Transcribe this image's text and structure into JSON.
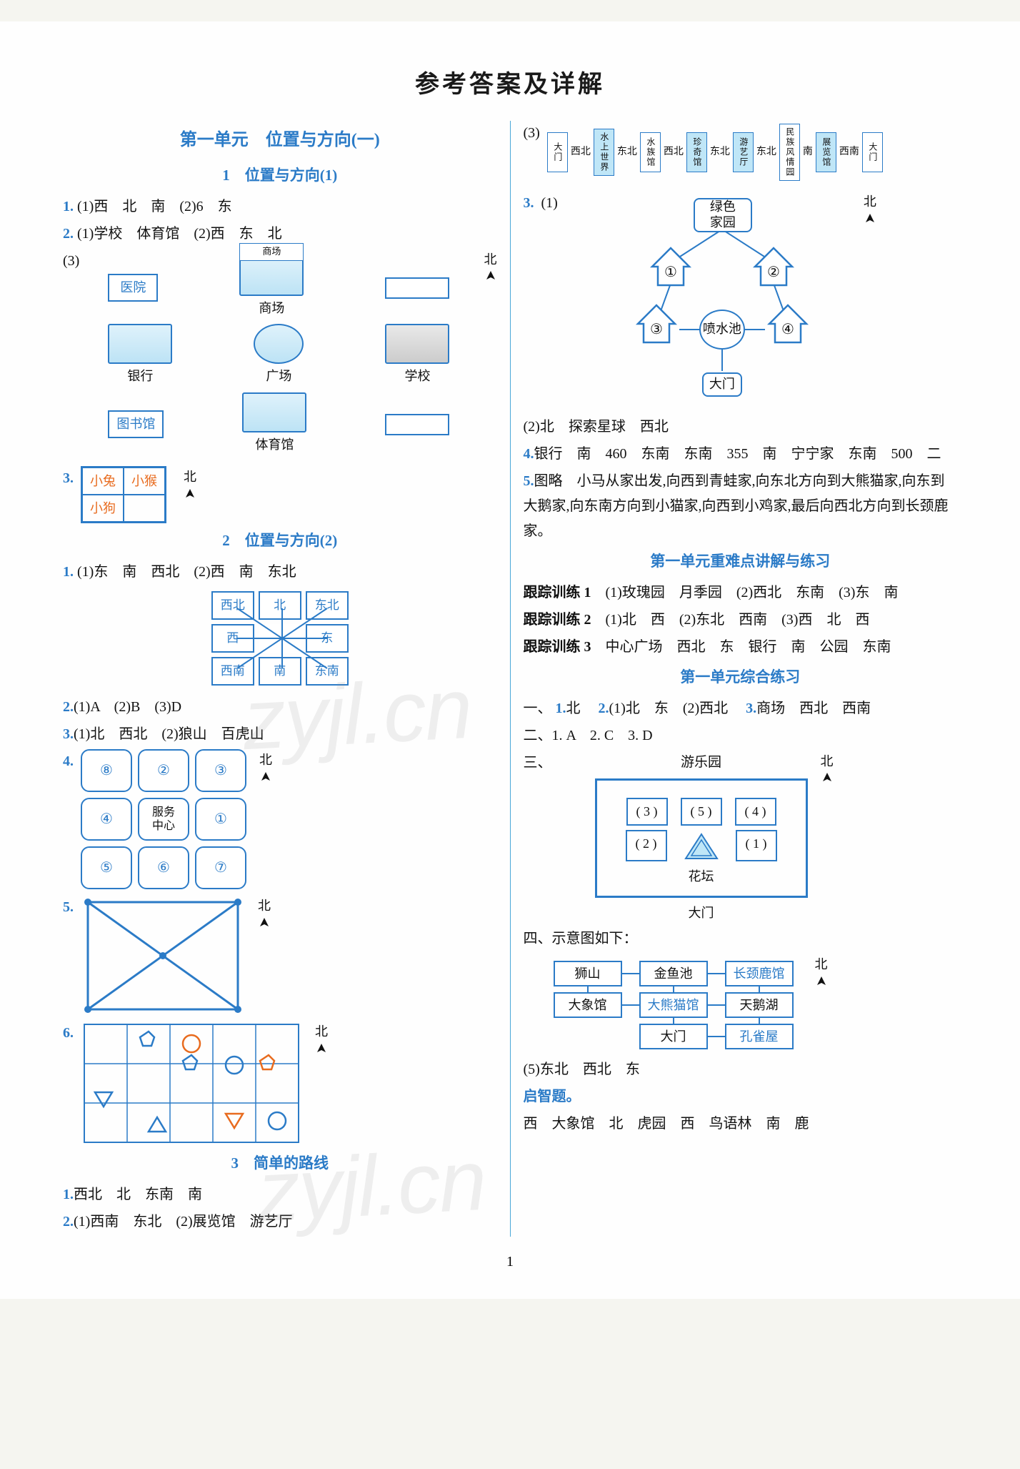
{
  "colors": {
    "blue": "#2b7bc7",
    "lightblue": "#bfe6f7",
    "orange": "#e86b1e",
    "text": "#111111",
    "bg": "#fefefe"
  },
  "title": "参考答案及详解",
  "page_number": "1",
  "watermark": "zyjl.cn",
  "north_char": "北",
  "left": {
    "unit_heading": "第一单元　位置与方向(一)",
    "sec1_heading": "1　位置与方向(1)",
    "q1": {
      "num": "1.",
      "parts": "(1)西　北　南　(2)6　东"
    },
    "q2": {
      "num": "2.",
      "line1": "(1)学校　体育馆　(2)西　东　北",
      "line2": "(3)"
    },
    "map": {
      "hospital": "医院",
      "market_label": "商场",
      "market_below": "商场",
      "bank": "银行",
      "plaza": "广场",
      "school": "学校",
      "library": "图书馆",
      "gym": "体育馆"
    },
    "q3": {
      "num": "3.",
      "cells": [
        "小兔",
        "小猴",
        "小狗",
        ""
      ]
    },
    "sec2_heading": "2　位置与方向(2)",
    "s2q1": {
      "num": "1.",
      "text": "(1)东　南　西北　(2)西　南　东北"
    },
    "compass": [
      "西北",
      "北",
      "东北",
      "西",
      "",
      "东",
      "西南",
      "南",
      "东南"
    ],
    "s2q2": {
      "num": "2.",
      "text": "(1)A　(2)B　(3)D"
    },
    "s2q3": {
      "num": "3.",
      "text": "(1)北　西北　(2)狼山　百虎山"
    },
    "s2q4": {
      "num": "4.",
      "cells": [
        "⑧",
        "②",
        "③",
        "④",
        "服务\n中心",
        "①",
        "⑤",
        "⑥",
        "⑦"
      ]
    },
    "s2q5": {
      "num": "5."
    },
    "s2q6": {
      "num": "6."
    },
    "sec3_heading": "3　简单的路线",
    "s3q1": {
      "num": "1.",
      "text": "西北　北　东南　南"
    },
    "s3q2": {
      "num": "2.",
      "text": "(1)西南　东北　(2)展览馆　游艺厅"
    }
  },
  "right": {
    "q3_label": "(3)",
    "strip": [
      {
        "t": "大门",
        "fill": false
      },
      {
        "dir": "西北"
      },
      {
        "t": "水上世界",
        "fill": true
      },
      {
        "dir": "东北"
      },
      {
        "t": "水族馆",
        "fill": false
      },
      {
        "dir": "西北"
      },
      {
        "t": "珍奇馆",
        "fill": true
      },
      {
        "dir": "东北"
      },
      {
        "t": "游艺厅",
        "fill": true
      },
      {
        "dir": "东北"
      },
      {
        "t": "民族风情园",
        "fill": false
      },
      {
        "dir": "南"
      },
      {
        "t": "展览馆",
        "fill": true
      },
      {
        "dir": "西南"
      },
      {
        "t": "大门",
        "fill": false
      }
    ],
    "p3": {
      "num": "3.",
      "p1": "(1)"
    },
    "park": {
      "top": "绿色\n家园",
      "h": [
        "①",
        "②",
        "③",
        "④"
      ],
      "fountain": "喷水池",
      "gate": "大门"
    },
    "p3_2": "(2)北　探索星球　西北",
    "p4": {
      "num": "4.",
      "text": "银行　南　460　东南　东南　355　南　宁宁家　东南　500　二"
    },
    "p5": {
      "num": "5.",
      "text": "图略　小马从家出发,向西到青蛙家,向东北方向到大熊猫家,向东到大鹅家,向东南方向到小猫家,向西到小鸡家,最后向西北方向到长颈鹿家。"
    },
    "hard_heading": "第一单元重难点讲解与练习",
    "t1": {
      "label": "跟踪训练 1",
      "text": "(1)玫瑰园　月季园　(2)西北　东南　(3)东　南"
    },
    "t2": {
      "label": "跟踪训练 2",
      "text": "(1)北　西　(2)东北　西南　(3)西　北　西"
    },
    "t3": {
      "label": "跟踪训练 3",
      "text": "中心广场　西北　东　银行　南　公园　东南"
    },
    "comp_heading": "第一单元综合练习",
    "c1_pre": "一、",
    "c1_1": {
      "n": "1.",
      "t": "北"
    },
    "c1_2": {
      "n": "2.",
      "t": "(1)北　东　(2)西北"
    },
    "c1_3": {
      "n": "3.",
      "t": "商场　西北　西南"
    },
    "c2": {
      "pre": "二、",
      "a": "1. A　2. C　3. D"
    },
    "c3_pre": "三、",
    "amuse": {
      "title": "游乐园",
      "row1": [
        "( 3 )",
        "( 5 )",
        "( 4 )"
      ],
      "row2": [
        "( 2 )",
        "",
        "( 1 )"
      ],
      "flower": "花坛",
      "gate": "大门"
    },
    "c4_pre": "四、示意图如下：",
    "zoo": [
      "狮山",
      "金鱼池",
      "长颈鹿馆",
      "大象馆",
      "大熊猫馆",
      "天鹅湖",
      "",
      "大门",
      "孔雀屋"
    ],
    "c5": "(5)东北　西北　东",
    "qz_label": "启智题。",
    "qz": "西　大象馆　北　虎园　西　鸟语林　南　鹿"
  }
}
